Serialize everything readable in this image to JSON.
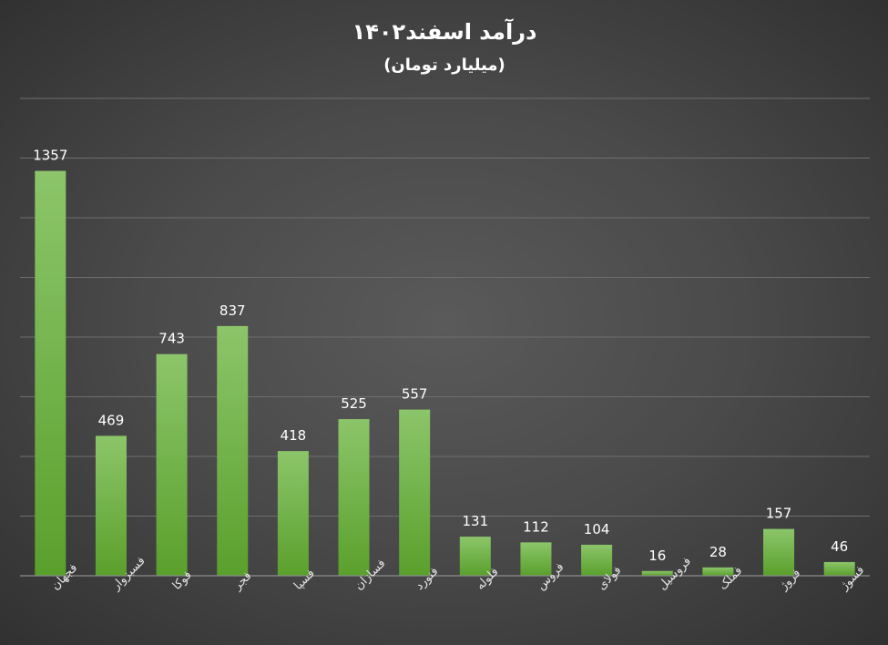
{
  "chart_data": {
    "type": "bar",
    "title": "درآمد اسفند۱۴۰۲",
    "subtitle": "(میلیارد تومان)",
    "categories": [
      "فجهان",
      "فسبزوار",
      "فوکا",
      "فجر",
      "فسپا",
      "فسازان",
      "فنورد",
      "فلوله",
      "فروس",
      "فولای",
      "فروسیل",
      "فملک",
      "فروژ",
      "فسوژ"
    ],
    "values": [
      1357,
      469,
      743,
      837,
      418,
      525,
      557,
      131,
      112,
      104,
      16,
      28,
      157,
      46
    ],
    "ylim": [
      0,
      1600
    ],
    "grid": true,
    "legend": "none",
    "colors": {
      "bar_top": "#8cc56a",
      "bar_bottom": "#5aa02c",
      "grid": "#6e6e6e",
      "axis": "#8c8c8c",
      "text": "#ffffff"
    }
  }
}
